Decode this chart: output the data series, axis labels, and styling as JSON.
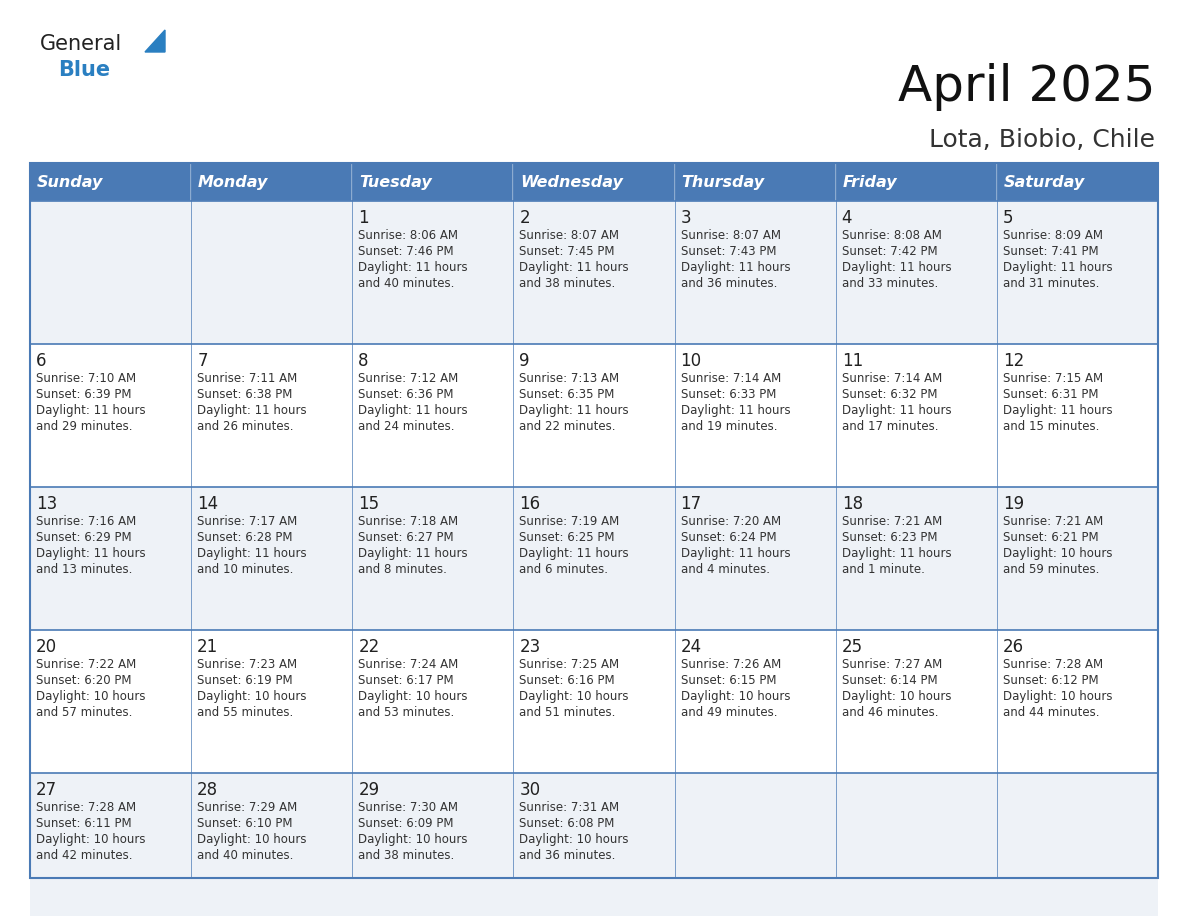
{
  "title": "April 2025",
  "subtitle": "Lota, Biobio, Chile",
  "days_of_week": [
    "Sunday",
    "Monday",
    "Tuesday",
    "Wednesday",
    "Thursday",
    "Friday",
    "Saturday"
  ],
  "header_bg": "#4a7ab5",
  "header_text": "#ffffff",
  "row_bg_odd": "#eef2f7",
  "row_bg_even": "#ffffff",
  "border_color": "#4a7ab5",
  "title_color": "#111111",
  "subtitle_color": "#333333",
  "cell_text_color": "#333333",
  "day_num_color": "#222222",
  "logo_general_color": "#222222",
  "logo_blue_color": "#2a7fc1",
  "calendar_data": [
    [
      {
        "day": null,
        "sunrise": null,
        "sunset": null,
        "daylight": null
      },
      {
        "day": null,
        "sunrise": null,
        "sunset": null,
        "daylight": null
      },
      {
        "day": 1,
        "sunrise": "8:06 AM",
        "sunset": "7:46 PM",
        "daylight": "11 hours\nand 40 minutes."
      },
      {
        "day": 2,
        "sunrise": "8:07 AM",
        "sunset": "7:45 PM",
        "daylight": "11 hours\nand 38 minutes."
      },
      {
        "day": 3,
        "sunrise": "8:07 AM",
        "sunset": "7:43 PM",
        "daylight": "11 hours\nand 36 minutes."
      },
      {
        "day": 4,
        "sunrise": "8:08 AM",
        "sunset": "7:42 PM",
        "daylight": "11 hours\nand 33 minutes."
      },
      {
        "day": 5,
        "sunrise": "8:09 AM",
        "sunset": "7:41 PM",
        "daylight": "11 hours\nand 31 minutes."
      }
    ],
    [
      {
        "day": 6,
        "sunrise": "7:10 AM",
        "sunset": "6:39 PM",
        "daylight": "11 hours\nand 29 minutes."
      },
      {
        "day": 7,
        "sunrise": "7:11 AM",
        "sunset": "6:38 PM",
        "daylight": "11 hours\nand 26 minutes."
      },
      {
        "day": 8,
        "sunrise": "7:12 AM",
        "sunset": "6:36 PM",
        "daylight": "11 hours\nand 24 minutes."
      },
      {
        "day": 9,
        "sunrise": "7:13 AM",
        "sunset": "6:35 PM",
        "daylight": "11 hours\nand 22 minutes."
      },
      {
        "day": 10,
        "sunrise": "7:14 AM",
        "sunset": "6:33 PM",
        "daylight": "11 hours\nand 19 minutes."
      },
      {
        "day": 11,
        "sunrise": "7:14 AM",
        "sunset": "6:32 PM",
        "daylight": "11 hours\nand 17 minutes."
      },
      {
        "day": 12,
        "sunrise": "7:15 AM",
        "sunset": "6:31 PM",
        "daylight": "11 hours\nand 15 minutes."
      }
    ],
    [
      {
        "day": 13,
        "sunrise": "7:16 AM",
        "sunset": "6:29 PM",
        "daylight": "11 hours\nand 13 minutes."
      },
      {
        "day": 14,
        "sunrise": "7:17 AM",
        "sunset": "6:28 PM",
        "daylight": "11 hours\nand 10 minutes."
      },
      {
        "day": 15,
        "sunrise": "7:18 AM",
        "sunset": "6:27 PM",
        "daylight": "11 hours\nand 8 minutes."
      },
      {
        "day": 16,
        "sunrise": "7:19 AM",
        "sunset": "6:25 PM",
        "daylight": "11 hours\nand 6 minutes."
      },
      {
        "day": 17,
        "sunrise": "7:20 AM",
        "sunset": "6:24 PM",
        "daylight": "11 hours\nand 4 minutes."
      },
      {
        "day": 18,
        "sunrise": "7:21 AM",
        "sunset": "6:23 PM",
        "daylight": "11 hours\nand 1 minute."
      },
      {
        "day": 19,
        "sunrise": "7:21 AM",
        "sunset": "6:21 PM",
        "daylight": "10 hours\nand 59 minutes."
      }
    ],
    [
      {
        "day": 20,
        "sunrise": "7:22 AM",
        "sunset": "6:20 PM",
        "daylight": "10 hours\nand 57 minutes."
      },
      {
        "day": 21,
        "sunrise": "7:23 AM",
        "sunset": "6:19 PM",
        "daylight": "10 hours\nand 55 minutes."
      },
      {
        "day": 22,
        "sunrise": "7:24 AM",
        "sunset": "6:17 PM",
        "daylight": "10 hours\nand 53 minutes."
      },
      {
        "day": 23,
        "sunrise": "7:25 AM",
        "sunset": "6:16 PM",
        "daylight": "10 hours\nand 51 minutes."
      },
      {
        "day": 24,
        "sunrise": "7:26 AM",
        "sunset": "6:15 PM",
        "daylight": "10 hours\nand 49 minutes."
      },
      {
        "day": 25,
        "sunrise": "7:27 AM",
        "sunset": "6:14 PM",
        "daylight": "10 hours\nand 46 minutes."
      },
      {
        "day": 26,
        "sunrise": "7:28 AM",
        "sunset": "6:12 PM",
        "daylight": "10 hours\nand 44 minutes."
      }
    ],
    [
      {
        "day": 27,
        "sunrise": "7:28 AM",
        "sunset": "6:11 PM",
        "daylight": "10 hours\nand 42 minutes."
      },
      {
        "day": 28,
        "sunrise": "7:29 AM",
        "sunset": "6:10 PM",
        "daylight": "10 hours\nand 40 minutes."
      },
      {
        "day": 29,
        "sunrise": "7:30 AM",
        "sunset": "6:09 PM",
        "daylight": "10 hours\nand 38 minutes."
      },
      {
        "day": 30,
        "sunrise": "7:31 AM",
        "sunset": "6:08 PM",
        "daylight": "10 hours\nand 36 minutes."
      },
      {
        "day": null,
        "sunrise": null,
        "sunset": null,
        "daylight": null
      },
      {
        "day": null,
        "sunrise": null,
        "sunset": null,
        "daylight": null
      },
      {
        "day": null,
        "sunrise": null,
        "sunset": null,
        "daylight": null
      }
    ]
  ]
}
